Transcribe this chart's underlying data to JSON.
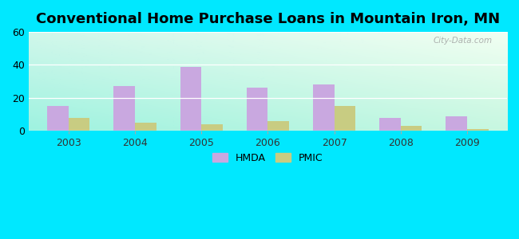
{
  "title": "Conventional Home Purchase Loans in Mountain Iron, MN",
  "years": [
    2003,
    2004,
    2005,
    2006,
    2007,
    2008,
    2009
  ],
  "hmda": [
    15,
    27,
    39,
    26,
    28,
    8,
    9
  ],
  "pmic": [
    8,
    5,
    4,
    6,
    15,
    3,
    1
  ],
  "hmda_color": "#c9a8e0",
  "pmic_color": "#c8cc82",
  "ylim": [
    0,
    60
  ],
  "yticks": [
    0,
    20,
    40,
    60
  ],
  "background_outer": "#00e8ff",
  "bg_topleft": "#b8f0d8",
  "bg_topright": "#e8f8f0",
  "bg_bottomleft": "#80e8d8",
  "bg_bottomright": "#c8f0d0",
  "title_fontsize": 13,
  "bar_width": 0.32,
  "watermark": "City-Data.com"
}
